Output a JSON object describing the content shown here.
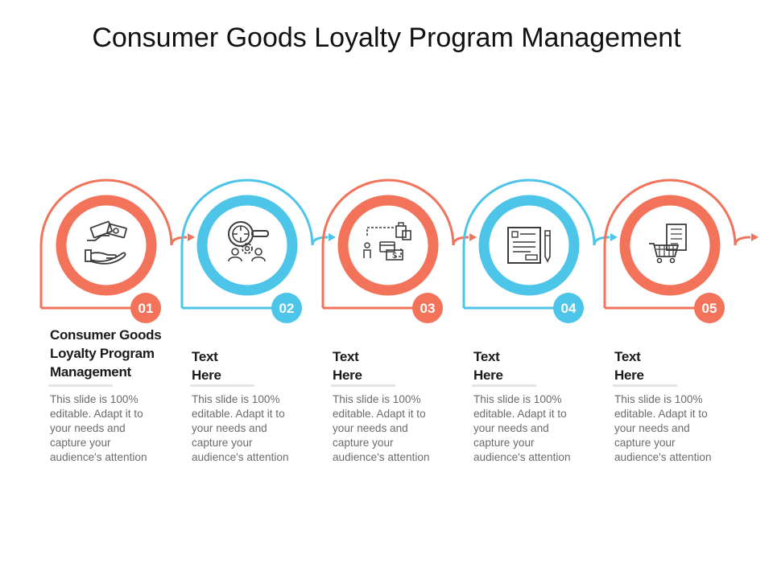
{
  "title": "Consumer Goods Loyalty Program Management",
  "colors": {
    "coral": "#f2735a",
    "blue": "#4cc5e8",
    "icon": "#3c3c3c",
    "badge_text": "#ffffff"
  },
  "steps": [
    {
      "number": "01",
      "color": "coral",
      "icon": "handshake-money-icon",
      "heading_lines": [
        "Consumer Goods",
        "Loyalty Program",
        "Management"
      ],
      "description_lines": [
        "This slide is 100%",
        "editable. Adapt it to",
        "your needs and",
        "capture your",
        "audience's attention"
      ]
    },
    {
      "number": "02",
      "color": "blue",
      "icon": "magnifier-team-icon",
      "heading_lines": [
        "Text",
        "Here"
      ],
      "description_lines": [
        "This slide is 100%",
        "editable. Adapt it to",
        "your needs and",
        "capture your",
        "audience's attention"
      ]
    },
    {
      "number": "03",
      "color": "coral",
      "icon": "shopping-flow-icon",
      "heading_lines": [
        "Text",
        "Here"
      ],
      "description_lines": [
        "This slide is 100%",
        "editable. Adapt it to",
        "your needs and",
        "capture your",
        "audience's attention"
      ]
    },
    {
      "number": "04",
      "color": "blue",
      "icon": "document-pen-icon",
      "heading_lines": [
        "Text",
        "Here"
      ],
      "description_lines": [
        "This slide is 100%",
        "editable. Adapt it to",
        "your needs and",
        "capture your",
        "audience's attention"
      ]
    },
    {
      "number": "05",
      "color": "coral",
      "icon": "cart-receipt-icon",
      "heading_lines": [
        "Text",
        "Here"
      ],
      "description_lines": [
        "This slide is 100%",
        "editable. Adapt it to",
        "your needs and",
        "capture your",
        "audience's attention"
      ]
    }
  ]
}
